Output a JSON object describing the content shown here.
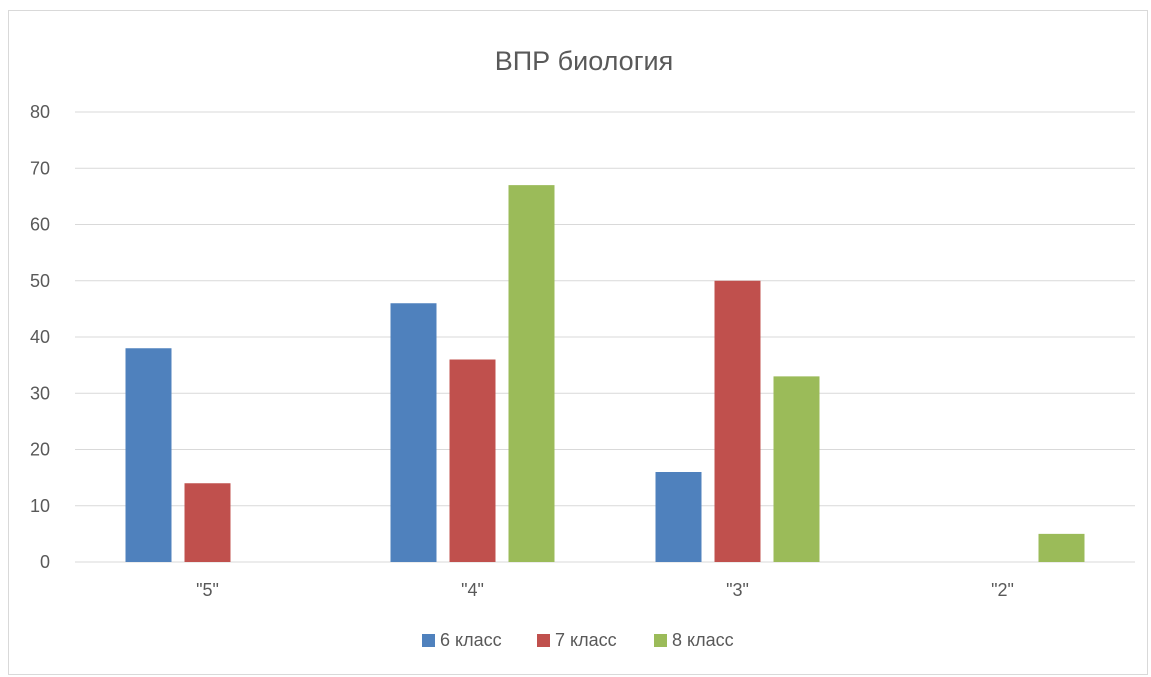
{
  "chart_data": {
    "type": "bar",
    "title": "ВПР биология",
    "categories": [
      "\"5\"",
      "\"4\"",
      "\"3\"",
      "\"2\""
    ],
    "series": [
      {
        "name": "6 класс",
        "values": [
          38,
          46,
          16,
          0
        ],
        "color": "#4f81bd"
      },
      {
        "name": "7 класс",
        "values": [
          14,
          36,
          50,
          0
        ],
        "color": "#c0504d"
      },
      {
        "name": "8 класс",
        "values": [
          0,
          67,
          33,
          5
        ],
        "color": "#9bbb59"
      }
    ],
    "ylim": [
      0,
      80
    ],
    "yticks": [
      0,
      10,
      20,
      30,
      40,
      50,
      60,
      70,
      80
    ],
    "grid": true,
    "legend_position": "bottom"
  }
}
